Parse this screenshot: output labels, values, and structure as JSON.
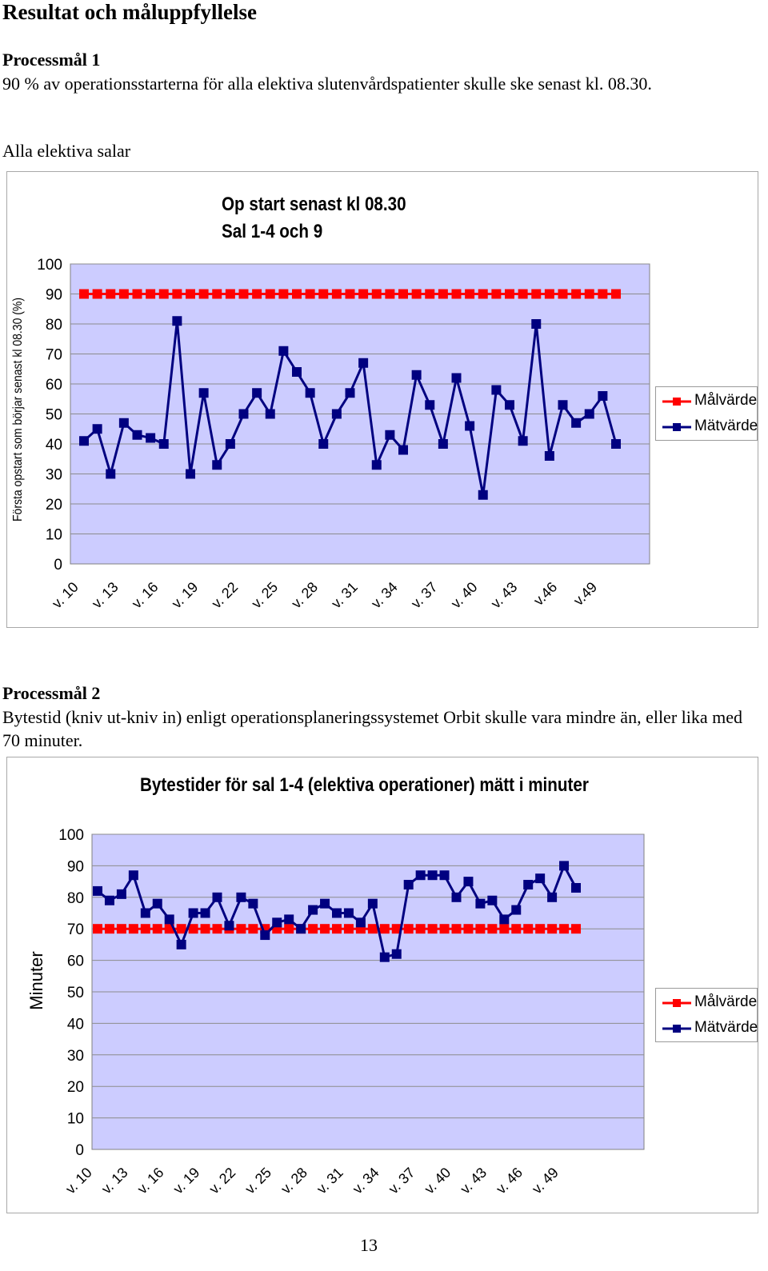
{
  "doc": {
    "heading": "Resultat och måluppfyllelse",
    "goal1_title": "Processmål 1",
    "goal1_text": "90 % av operationsstarterna för alla elektiva slutenvårdspatienter skulle ske senast kl. 08.30.",
    "goal1_sub": "Alla elektiva salar",
    "goal2_title": "Processmål 2",
    "goal2_text": "Bytestid (kniv ut-kniv in) enligt operationsplaneringssystemet Orbit skulle vara mindre än, eller lika med 70 minuter.",
    "page_number": "13"
  },
  "colors": {
    "plot_bg": "#ccccff",
    "target": "#ff0000",
    "measured": "#000080",
    "grid": "#8c8c8c"
  },
  "chart_data": [
    {
      "type": "line",
      "title_line1": "Op start senast kl 08.30",
      "title_line2": "Sal 1-4 och 9",
      "ylabel": "Första opstart som börjar senast kl 08.30 (%)",
      "xlabel": "",
      "ylim": [
        0,
        100
      ],
      "yticks": [
        "0",
        "10",
        "20",
        "30",
        "40",
        "50",
        "60",
        "70",
        "80",
        "90",
        "100"
      ],
      "xtick_labels": [
        "v. 10",
        "v. 13",
        "v. 16",
        "v. 19",
        "v. 22",
        "v. 25",
        "v. 28",
        "v. 31",
        "v. 34",
        "v. 37",
        "v. 40",
        "v. 43",
        "v.46",
        "v.49"
      ],
      "x": [
        10,
        11,
        12,
        13,
        14,
        15,
        16,
        17,
        18,
        19,
        20,
        21,
        22,
        23,
        24,
        25,
        26,
        27,
        28,
        29,
        30,
        31,
        32,
        33,
        34,
        35,
        36,
        37,
        38,
        39,
        40,
        41,
        42,
        43,
        44,
        45,
        46,
        47,
        48,
        49,
        50
      ],
      "series": [
        {
          "name": "Målvärde",
          "color": "#ff0000",
          "values": [
            90,
            90,
            90,
            90,
            90,
            90,
            90,
            90,
            90,
            90,
            90,
            90,
            90,
            90,
            90,
            90,
            90,
            90,
            90,
            90,
            90,
            90,
            90,
            90,
            90,
            90,
            90,
            90,
            90,
            90,
            90,
            90,
            90,
            90,
            90,
            90,
            90,
            90,
            90,
            90,
            90
          ]
        },
        {
          "name": "Mätvärde",
          "color": "#000080",
          "values": [
            41,
            45,
            30,
            47,
            43,
            42,
            40,
            81,
            30,
            57,
            33,
            40,
            50,
            57,
            50,
            71,
            64,
            57,
            40,
            50,
            57,
            67,
            33,
            43,
            38,
            63,
            53,
            40,
            62,
            46,
            23,
            58,
            53,
            41,
            80,
            36,
            53,
            47,
            50,
            56,
            40
          ]
        }
      ],
      "legend": "right",
      "grid": true
    },
    {
      "type": "line",
      "title_line1": "Bytestider för sal 1-4 (elektiva operationer) mätt i minuter",
      "title_line2": "",
      "ylabel": "Minuter",
      "xlabel": "",
      "ylim": [
        0,
        100
      ],
      "yticks": [
        "0",
        "10",
        "20",
        "30",
        "40",
        "50",
        "60",
        "70",
        "80",
        "90",
        "100"
      ],
      "xtick_labels": [
        "v. 10",
        "v. 13",
        "v. 16",
        "v. 19",
        "v. 22",
        "v. 25",
        "v. 28",
        "v. 31",
        "v. 34",
        "v. 37",
        "v. 40",
        "v. 43",
        "v. 46",
        "v. 49"
      ],
      "x": [
        10,
        11,
        12,
        13,
        14,
        15,
        16,
        17,
        18,
        19,
        20,
        21,
        22,
        23,
        24,
        25,
        26,
        27,
        28,
        29,
        30,
        31,
        32,
        33,
        34,
        35,
        36,
        37,
        38,
        39,
        40,
        41,
        42,
        43,
        44,
        45,
        46,
        47,
        48,
        49,
        50
      ],
      "series": [
        {
          "name": "Målvärde",
          "color": "#ff0000",
          "values": [
            70,
            70,
            70,
            70,
            70,
            70,
            70,
            70,
            70,
            70,
            70,
            70,
            70,
            70,
            70,
            70,
            70,
            70,
            70,
            70,
            70,
            70,
            70,
            70,
            70,
            70,
            70,
            70,
            70,
            70,
            70,
            70,
            70,
            70,
            70,
            70,
            70,
            70,
            70,
            70,
            70
          ]
        },
        {
          "name": "Mätvärde",
          "color": "#000080",
          "values": [
            82,
            79,
            81,
            87,
            75,
            78,
            73,
            65,
            75,
            75,
            80,
            71,
            80,
            78,
            68,
            72,
            73,
            70,
            76,
            78,
            75,
            75,
            72,
            78,
            61,
            62,
            84,
            87,
            87,
            87,
            80,
            85,
            78,
            79,
            73,
            76,
            84,
            86,
            80,
            90,
            83
          ]
        }
      ],
      "legend": "right",
      "grid": true
    }
  ]
}
